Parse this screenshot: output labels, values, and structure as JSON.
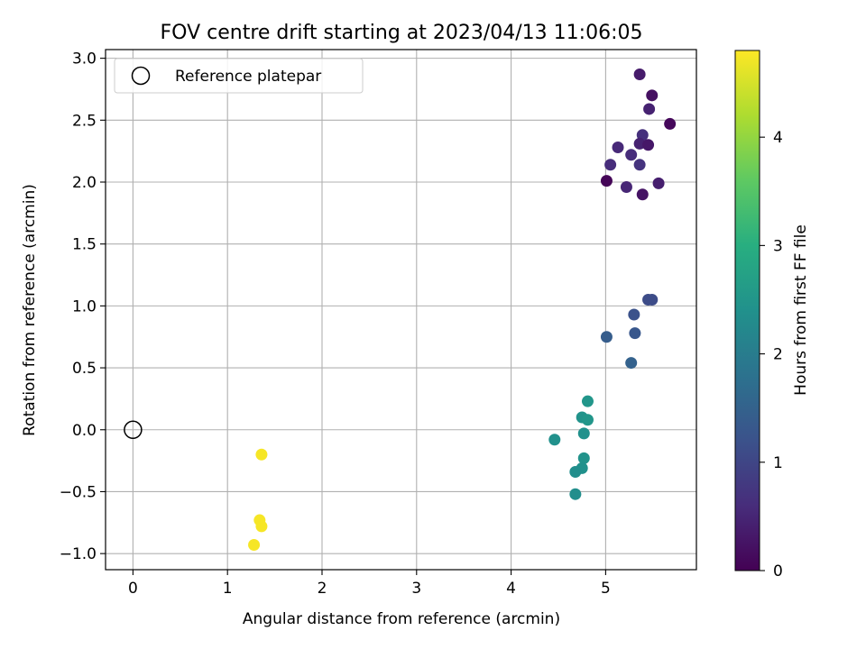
{
  "chart_data": {
    "type": "scatter",
    "title": "FOV centre drift starting at 2023/04/13 11:06:05",
    "xlabel": "Angular distance from reference (arcmin)",
    "ylabel": "Rotation from reference (arcmin)",
    "xlim": [
      -0.29,
      5.96
    ],
    "ylim": [
      -1.13,
      3.07
    ],
    "xticks": [
      0,
      1,
      2,
      3,
      4,
      5
    ],
    "yticks": [
      -1.0,
      -0.5,
      0.0,
      0.5,
      1.0,
      1.5,
      2.0,
      2.5,
      3.0
    ],
    "xtick_labels": [
      "0",
      "1",
      "2",
      "3",
      "4",
      "5"
    ],
    "ytick_labels": [
      "−1.0",
      "−0.5",
      "0.0",
      "0.5",
      "1.0",
      "1.5",
      "2.0",
      "2.5",
      "3.0"
    ],
    "grid": true,
    "colormap": "viridis",
    "colorbar": {
      "label": "Hours from first FF file",
      "range": [
        0,
        4.8
      ],
      "ticks": [
        0,
        1,
        2,
        3,
        4
      ],
      "tick_labels": [
        "0",
        "1",
        "2",
        "3",
        "4"
      ]
    },
    "legend": {
      "placement": "upper-left",
      "entries": [
        {
          "label": "Reference platepar",
          "marker": "open-circle",
          "color": "#000000"
        }
      ]
    },
    "reference_point": {
      "x": 0.0,
      "y": 0.0
    },
    "points": [
      {
        "x": 5.36,
        "y": 2.87,
        "hours": 0.35
      },
      {
        "x": 5.49,
        "y": 2.7,
        "hours": 0.2
      },
      {
        "x": 5.46,
        "y": 2.59,
        "hours": 0.45
      },
      {
        "x": 5.68,
        "y": 2.47,
        "hours": 0.1
      },
      {
        "x": 5.39,
        "y": 2.38,
        "hours": 0.65
      },
      {
        "x": 5.36,
        "y": 2.31,
        "hours": 0.45
      },
      {
        "x": 5.45,
        "y": 2.3,
        "hours": 0.3
      },
      {
        "x": 5.13,
        "y": 2.28,
        "hours": 0.55
      },
      {
        "x": 5.27,
        "y": 2.22,
        "hours": 0.6
      },
      {
        "x": 5.05,
        "y": 2.14,
        "hours": 0.6
      },
      {
        "x": 5.36,
        "y": 2.14,
        "hours": 0.7
      },
      {
        "x": 5.01,
        "y": 2.01,
        "hours": 0.05
      },
      {
        "x": 5.22,
        "y": 1.96,
        "hours": 0.5
      },
      {
        "x": 5.56,
        "y": 1.99,
        "hours": 0.4
      },
      {
        "x": 5.39,
        "y": 1.9,
        "hours": 0.25
      },
      {
        "x": 5.45,
        "y": 1.05,
        "hours": 1.1
      },
      {
        "x": 5.49,
        "y": 1.05,
        "hours": 1.1
      },
      {
        "x": 5.3,
        "y": 0.93,
        "hours": 1.2
      },
      {
        "x": 5.31,
        "y": 0.78,
        "hours": 1.3
      },
      {
        "x": 5.01,
        "y": 0.75,
        "hours": 1.4
      },
      {
        "x": 5.27,
        "y": 0.54,
        "hours": 1.5
      },
      {
        "x": 4.81,
        "y": 0.23,
        "hours": 2.5
      },
      {
        "x": 4.75,
        "y": 0.1,
        "hours": 2.45
      },
      {
        "x": 4.81,
        "y": 0.08,
        "hours": 2.5
      },
      {
        "x": 4.77,
        "y": -0.03,
        "hours": 2.4
      },
      {
        "x": 4.46,
        "y": -0.08,
        "hours": 2.4
      },
      {
        "x": 4.77,
        "y": -0.23,
        "hours": 2.45
      },
      {
        "x": 4.75,
        "y": -0.31,
        "hours": 2.4
      },
      {
        "x": 4.68,
        "y": -0.34,
        "hours": 2.35
      },
      {
        "x": 4.68,
        "y": -0.52,
        "hours": 2.35
      },
      {
        "x": 1.36,
        "y": -0.2,
        "hours": 4.75
      },
      {
        "x": 1.34,
        "y": -0.73,
        "hours": 4.75
      },
      {
        "x": 1.36,
        "y": -0.78,
        "hours": 4.75
      },
      {
        "x": 1.28,
        "y": -0.93,
        "hours": 4.75
      }
    ]
  }
}
